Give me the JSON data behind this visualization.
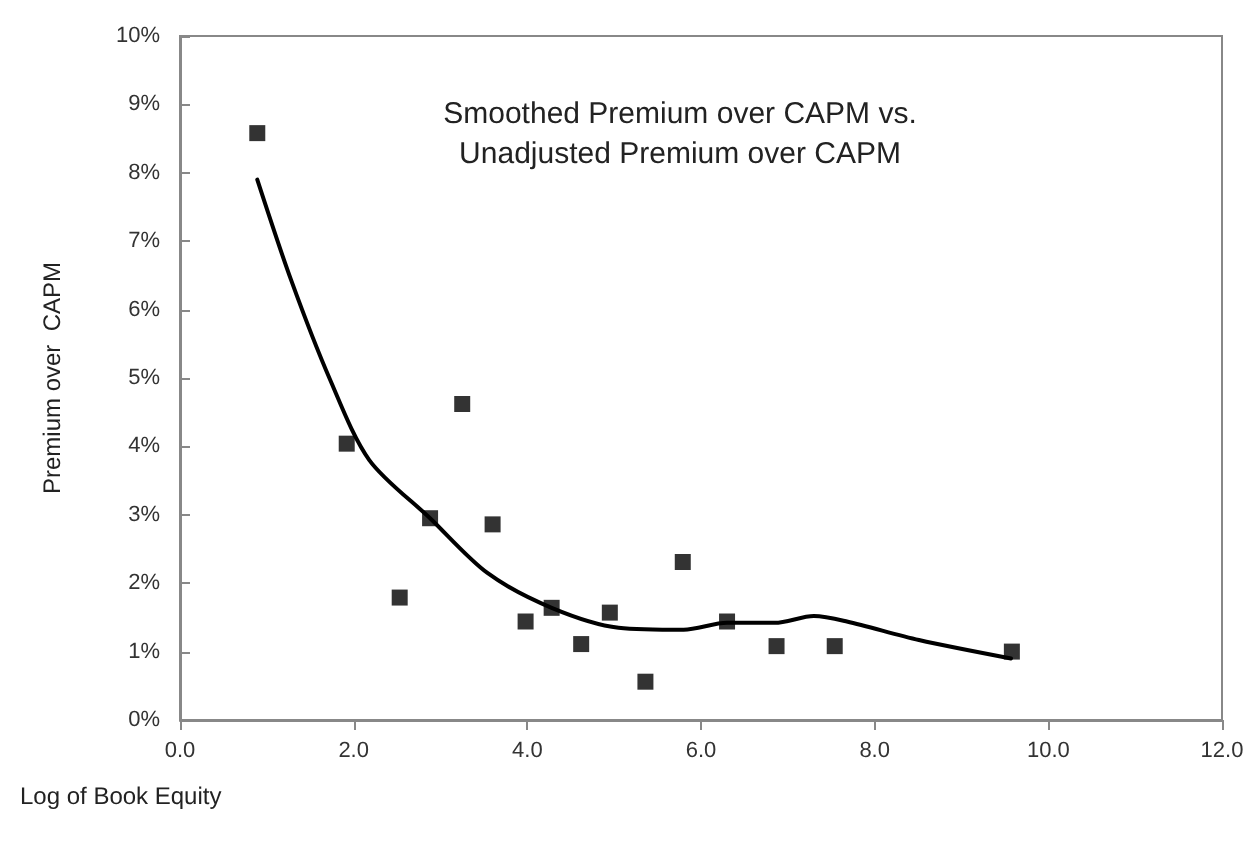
{
  "chart_data": {
    "type": "scatter",
    "title": "Smoothed Premium over CAPM vs.\nUnadjusted Premium over CAPM",
    "xlabel": "Log of Book Equity",
    "ylabel": "Premium over  CAPM",
    "series": [
      {
        "color": "#000000",
        "marker": "square",
        "x": [
          0.89,
          1.92,
          2.53,
          2.88,
          3.25,
          3.6,
          3.98,
          4.28,
          4.62,
          4.95,
          5.36,
          5.79,
          6.3,
          6.87,
          7.54,
          9.58
        ],
        "values": [
          8.58,
          4.04,
          1.79,
          2.95,
          4.62,
          2.86,
          1.44,
          1.64,
          1.11,
          1.57,
          0.56,
          2.31,
          1.44,
          1.08,
          1.08,
          1.0
        ]
      },
      {
        "type": "line",
        "color": "#000000",
        "marker": "none",
        "line_style": "solid",
        "x": [
          0.89,
          1.28,
          1.73,
          2.18,
          2.88,
          3.54,
          4.28,
          5.05,
          5.8,
          6.3,
          6.85,
          7.3,
          7.68,
          8.51,
          9.57
        ],
        "values": [
          7.9,
          6.43,
          4.97,
          3.8,
          2.95,
          2.15,
          1.64,
          1.35,
          1.32,
          1.42,
          1.42,
          1.52,
          1.44,
          1.17,
          0.9
        ]
      }
    ],
    "xlim": [
      0,
      12
    ],
    "xticks": [
      {
        "value": 0,
        "label": "0.0"
      },
      {
        "value": 2,
        "label": "2.0"
      },
      {
        "value": 4,
        "label": "4.0"
      },
      {
        "value": 6,
        "label": "6.0"
      },
      {
        "value": 8,
        "label": "8.0"
      },
      {
        "value": 10,
        "label": "10.0"
      },
      {
        "value": 12,
        "label": "12.0"
      }
    ],
    "ylim": [
      0,
      10
    ],
    "yticks": [
      {
        "value": 0,
        "label": "0%"
      },
      {
        "value": 1,
        "label": "1%"
      },
      {
        "value": 2,
        "label": "2%"
      },
      {
        "value": 3,
        "label": "3%"
      },
      {
        "value": 4,
        "label": "4%"
      },
      {
        "value": 5,
        "label": "5%"
      },
      {
        "value": 6,
        "label": "6%"
      },
      {
        "value": 7,
        "label": "7%"
      },
      {
        "value": 8,
        "label": "8%"
      },
      {
        "value": 9,
        "label": "9%"
      },
      {
        "value": 10,
        "label": "10%"
      }
    ],
    "grid": false
  }
}
